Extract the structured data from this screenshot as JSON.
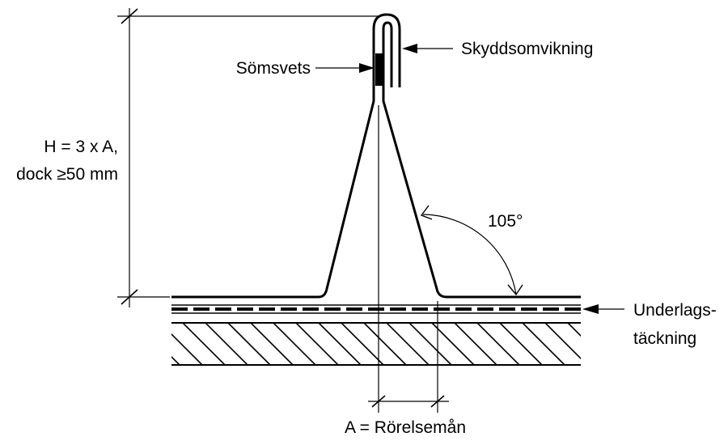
{
  "labels": {
    "protective_fold": "Skyddsomvikning",
    "seam_weld": "Sömsvets",
    "height_line1": "H = 3 x A,",
    "height_line2": "dock ≥50 mm",
    "angle": "105°",
    "underlay_line1": "Underlags-",
    "underlay_line2": "täckning",
    "movement": "A = Rörelsemån"
  }
}
